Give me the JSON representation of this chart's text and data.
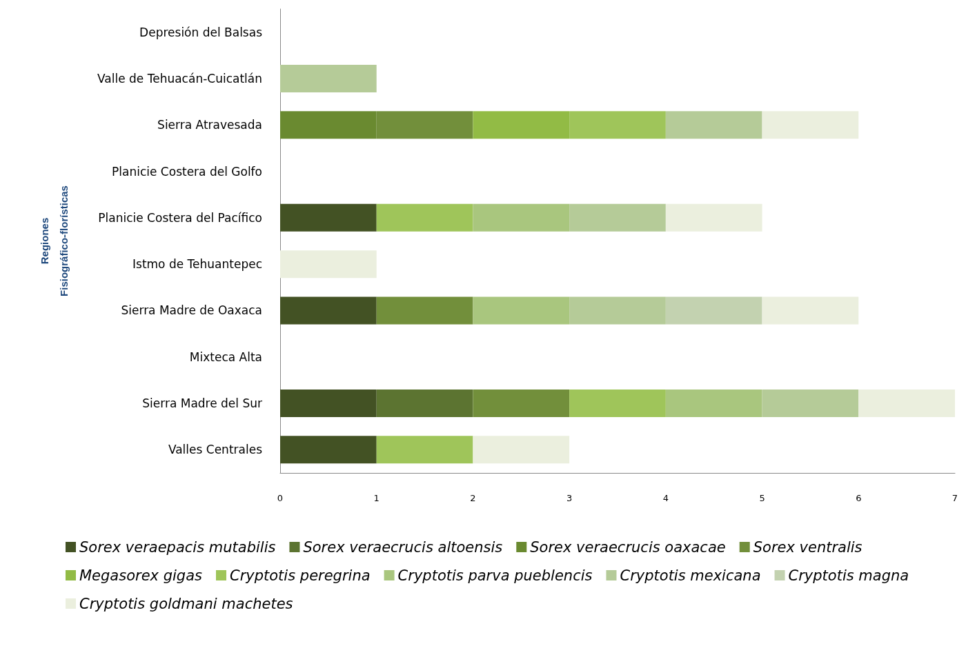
{
  "chart_data": {
    "type": "bar",
    "orientation": "horizontal",
    "stacked": true,
    "ylabel": "Regiones\nFisiográfico-florísticas",
    "categories": [
      "Depresión del Balsas",
      "Valle de Tehuacán-Cuicatlán",
      "Sierra Atravesada",
      "Planicie Costera del Golfo",
      "Planicie Costera del Pacífico",
      "Istmo de Tehuantepec",
      "Sierra Madre de Oaxaca",
      "Mixteca Alta",
      "Sierra Madre del Sur",
      "Valles Centrales"
    ],
    "series": [
      {
        "name": "Sorex veraepacis mutabilis",
        "color": "#435224",
        "values": [
          null,
          null,
          null,
          null,
          1,
          null,
          1,
          null,
          1,
          1
        ]
      },
      {
        "name": "Sorex veraecrucis altoensis",
        "color": "#5c7431",
        "values": [
          null,
          null,
          null,
          null,
          null,
          null,
          null,
          null,
          1,
          null
        ]
      },
      {
        "name": "Sorex veraecrucis oaxacae",
        "color": "#6a8a30",
        "values": [
          null,
          null,
          1,
          null,
          null,
          null,
          null,
          null,
          null,
          null
        ]
      },
      {
        "name": "Sorex ventralis",
        "color": "#728f3b",
        "values": [
          null,
          null,
          1,
          null,
          null,
          null,
          1,
          null,
          1,
          null
        ]
      },
      {
        "name": "Megasorex gigas",
        "color": "#92bb45",
        "values": [
          null,
          null,
          1,
          null,
          null,
          null,
          null,
          null,
          null,
          null
        ]
      },
      {
        "name": "Cryptotis peregrina",
        "color": "#9fc55a",
        "values": [
          null,
          null,
          1,
          null,
          1,
          null,
          null,
          null,
          1,
          1
        ]
      },
      {
        "name": "Cryptotis parva pueblencis",
        "color": "#a9c67e",
        "values": [
          null,
          null,
          null,
          null,
          1,
          null,
          1,
          null,
          1,
          null
        ]
      },
      {
        "name": "Cryptotis mexicana",
        "color": "#b5cb98",
        "values": [
          null,
          1,
          1,
          null,
          1,
          null,
          1,
          null,
          1,
          null
        ]
      },
      {
        "name": "Cryptotis magna",
        "color": "#c3d2b0",
        "values": [
          null,
          null,
          null,
          null,
          null,
          null,
          1,
          null,
          null,
          null
        ]
      },
      {
        "name": "Cryptotis goldmani machetes",
        "color": "#ebefde",
        "values": [
          null,
          null,
          1,
          null,
          1,
          1,
          1,
          null,
          1,
          1
        ]
      }
    ],
    "xlim": [
      0,
      7
    ],
    "xticks": [
      0,
      1,
      2,
      3,
      4,
      5,
      6,
      7
    ],
    "grid": false,
    "legend": "bottom"
  }
}
